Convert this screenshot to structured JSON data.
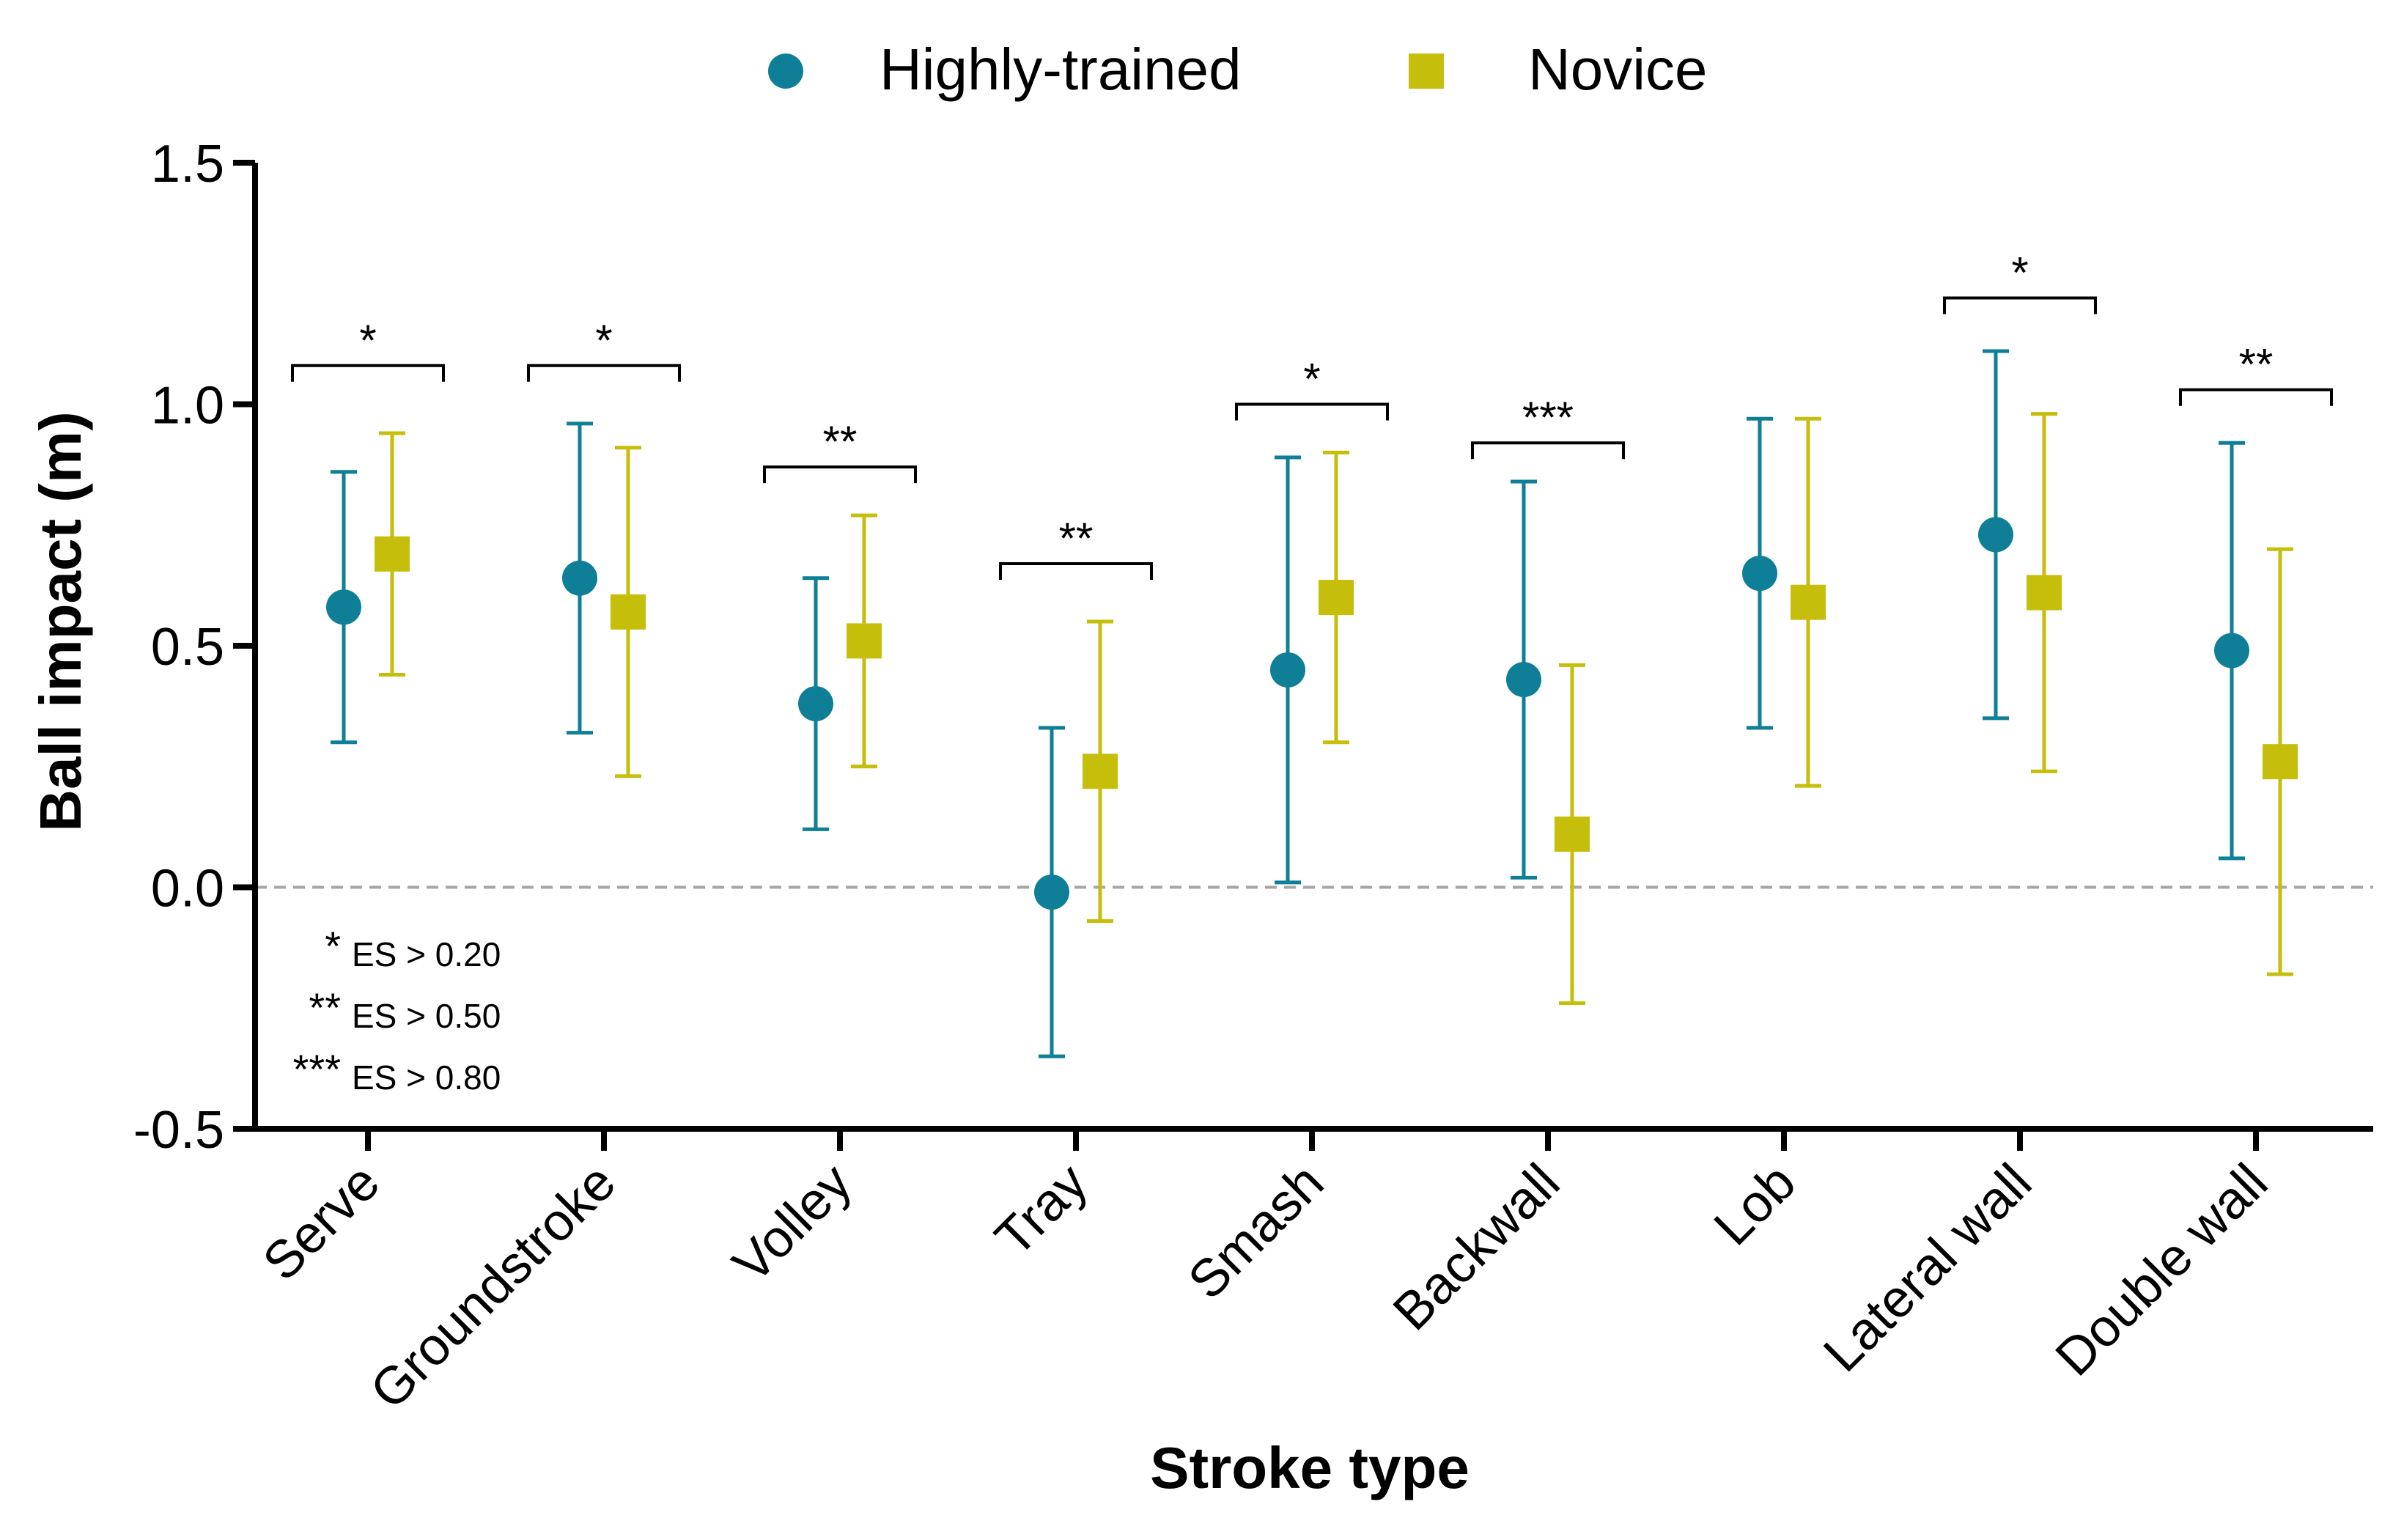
{
  "chart_data": {
    "type": "scatter",
    "title": "",
    "xlabel": "Stroke type",
    "ylabel": "Ball impact (m)",
    "ylim": [
      -0.5,
      1.5
    ],
    "yticks": [
      "-0.5",
      "0.0",
      "0.5",
      "1.0",
      "1.5"
    ],
    "ytick_values": [
      -0.5,
      0.0,
      0.5,
      1.0,
      1.5
    ],
    "categories": [
      "Serve",
      "Groundstroke",
      "Volley",
      "Tray",
      "Smash",
      "Backwall",
      "Lob",
      "Lateral wall",
      "Double wall"
    ],
    "reference_line": 0.0,
    "legend_position": "top-center",
    "series": [
      {
        "name": "Highly-trained",
        "marker": "circle",
        "color": "#0e7f96",
        "values": [
          0.58,
          0.64,
          0.38,
          -0.01,
          0.45,
          0.43,
          0.65,
          0.73,
          0.49
        ],
        "lower": [
          0.3,
          0.32,
          0.12,
          -0.35,
          0.01,
          0.02,
          0.33,
          0.35,
          0.06
        ],
        "upper": [
          0.86,
          0.96,
          0.64,
          0.33,
          0.89,
          0.84,
          0.97,
          1.11,
          0.92
        ]
      },
      {
        "name": "Novice",
        "marker": "square",
        "color": "#c5be0a",
        "values": [
          0.69,
          0.57,
          0.51,
          0.24,
          0.6,
          0.11,
          0.59,
          0.61,
          0.26
        ],
        "lower": [
          0.44,
          0.23,
          0.25,
          -0.07,
          0.3,
          -0.24,
          0.21,
          0.24,
          -0.18
        ],
        "upper": [
          0.94,
          0.91,
          0.77,
          0.55,
          0.9,
          0.46,
          0.97,
          0.98,
          0.7
        ]
      }
    ],
    "significance": [
      {
        "category": "Serve",
        "label": "*",
        "level": 1.08
      },
      {
        "category": "Groundstroke",
        "label": "*",
        "level": 1.08
      },
      {
        "category": "Volley",
        "label": "**",
        "level": 0.87
      },
      {
        "category": "Tray",
        "label": "**",
        "level": 0.67
      },
      {
        "category": "Smash",
        "label": "*",
        "level": 1.0
      },
      {
        "category": "Backwall",
        "label": "***",
        "level": 0.92
      },
      {
        "category": "Lateral wall",
        "label": "*",
        "level": 1.22
      },
      {
        "category": "Double wall",
        "label": "**",
        "level": 1.03
      }
    ],
    "es_legend": [
      {
        "stars": "*",
        "text": "ES > 0.20"
      },
      {
        "stars": "**",
        "text": "ES > 0.50"
      },
      {
        "stars": "***",
        "text": "ES > 0.80"
      }
    ]
  }
}
